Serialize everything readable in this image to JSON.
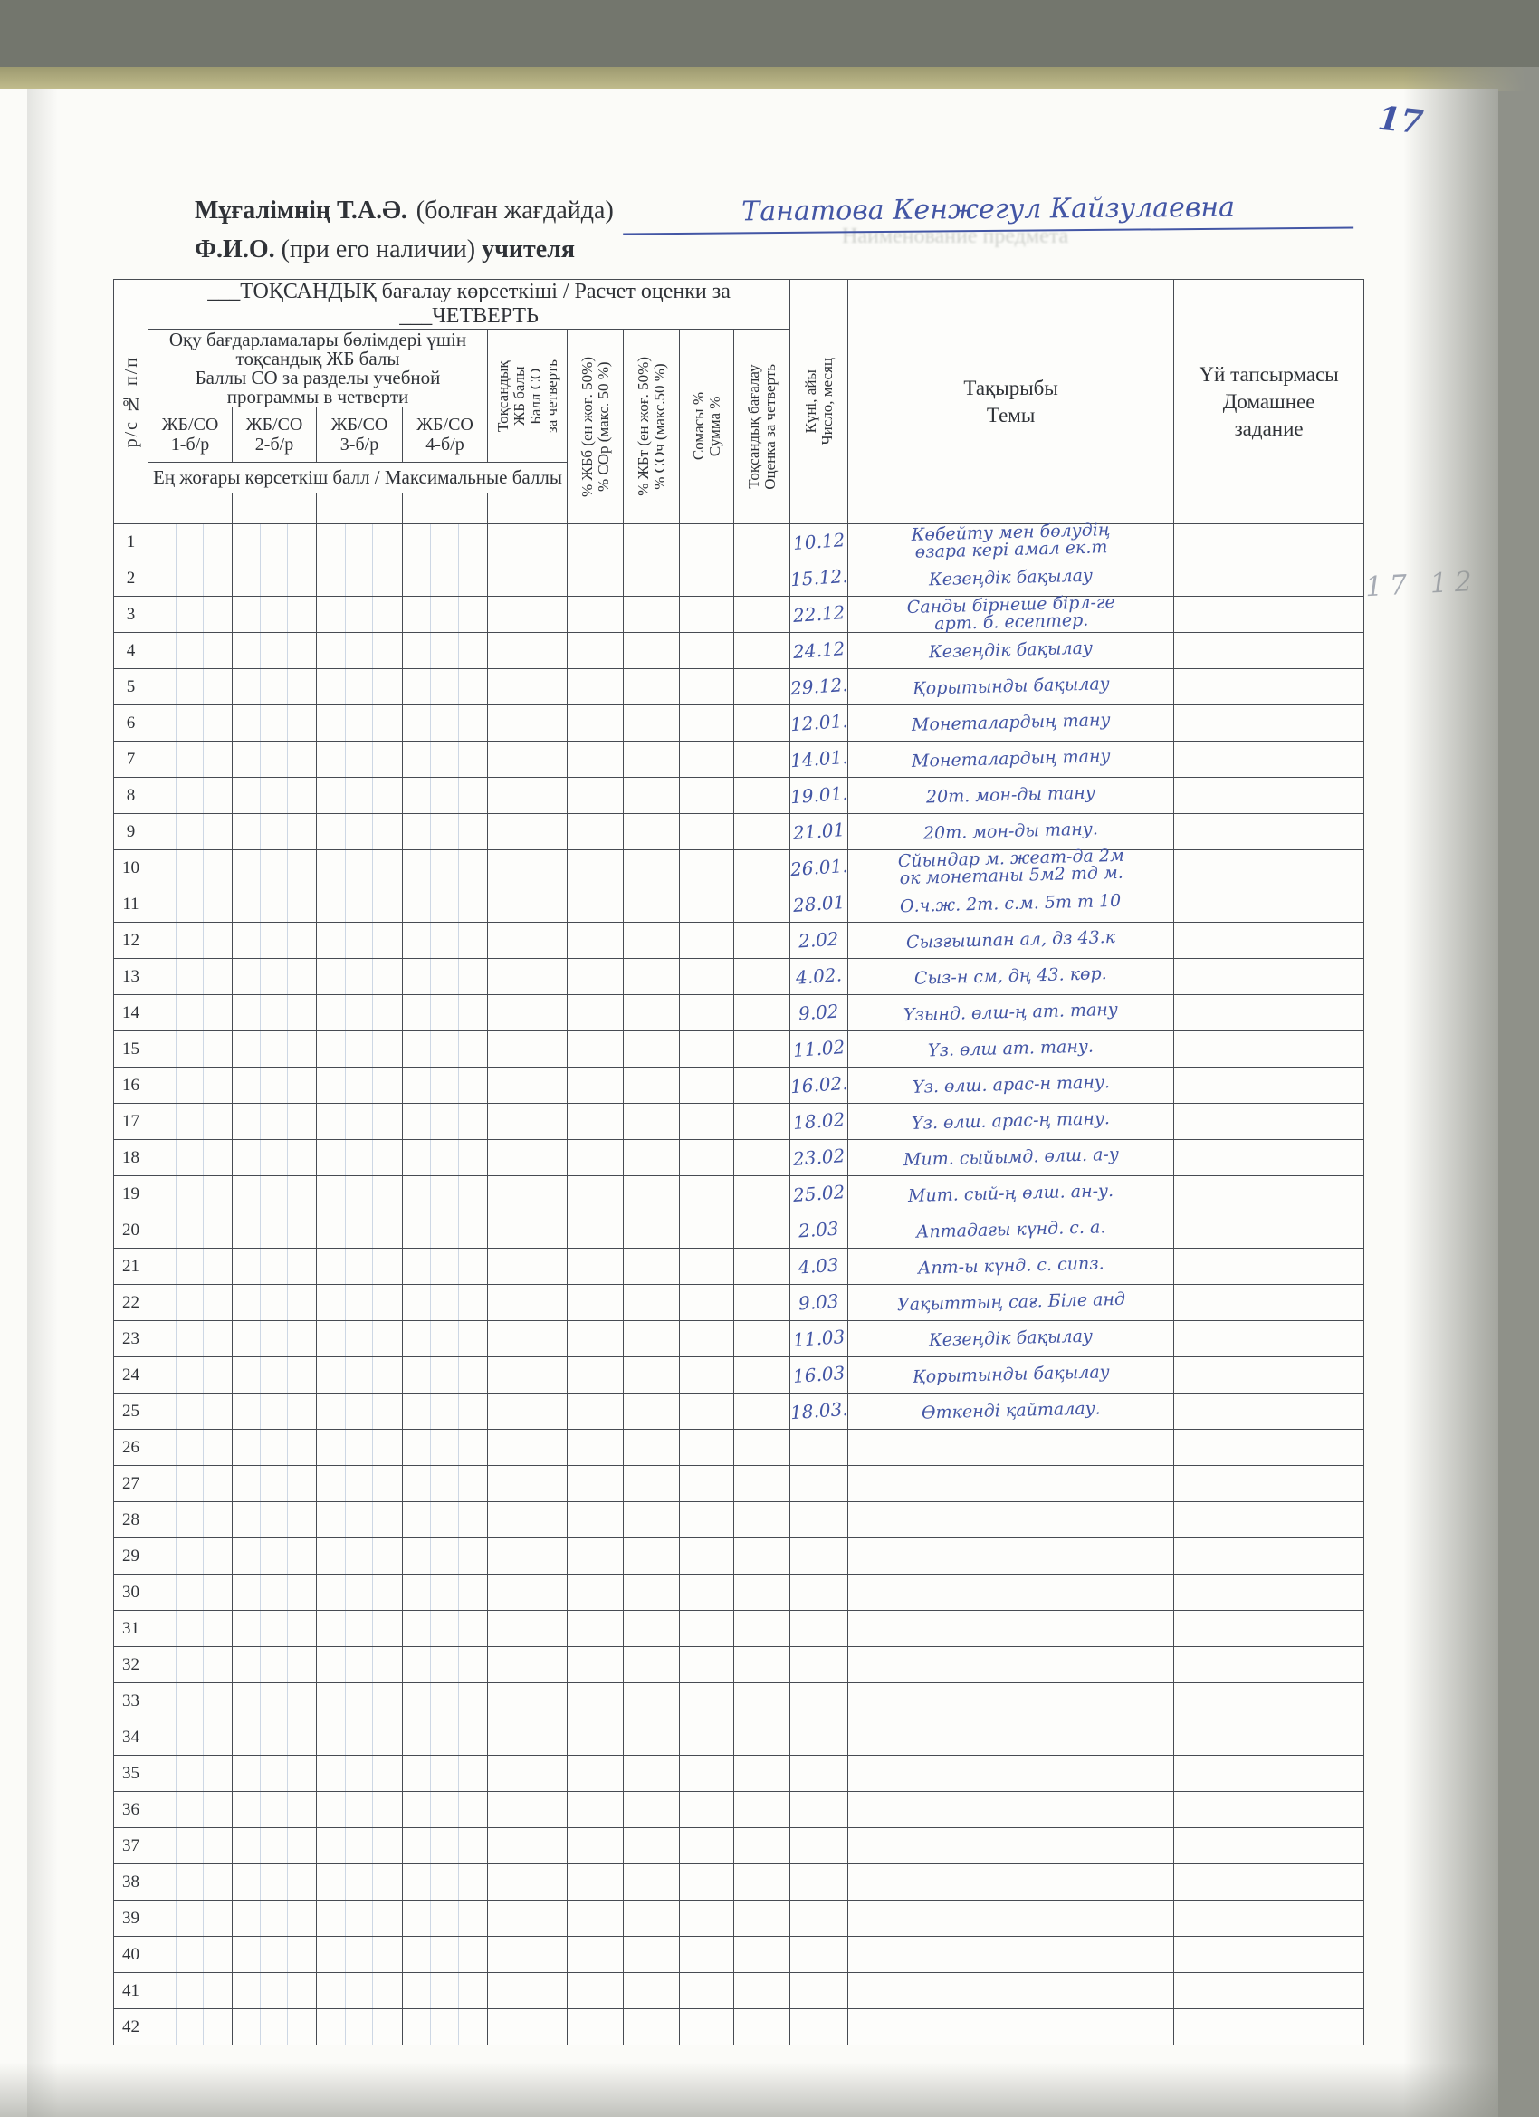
{
  "page": {
    "corner_page_number": "17",
    "margin_pencil_note": "17 12",
    "bleed_through_text": "Наименование предмета"
  },
  "teacher_line": {
    "label_bold_kk": "Мұғалімнің Т.А.Ә.",
    "label_paren_kk": "(болған жағдайда)",
    "handwritten_name": "Танатова Кенжегул Кайзулаевна",
    "label_bold_ru": "Ф.И.О.",
    "label_paren_ru": "(при его наличии)",
    "label_tail_ru": "учителя"
  },
  "table": {
    "title": "___ТОҚСАНДЫҚ бағалау көрсеткіші / Расчет оценки за ___ЧЕТВЕРТЬ",
    "col_num": "р/с  №  п/п",
    "group_header": "Оқу бағдарламалары бөлімдері үшін\nтоқсандық ЖБ балы\nБаллы СО за разделы учебной\nпрограммы в четверти",
    "sub_cols": [
      "ЖБ/СО\n1-б/р",
      "ЖБ/СО\n2-б/р",
      "ЖБ/СО\n3-б/р",
      "ЖБ/СО\n4-б/р"
    ],
    "col_tok_jb": "Тоқсандық\nЖБ балы\nБалл СО\nза четверть",
    "col_pct_jbb": "% ЖБб (ен жоғ. 50%)\n% СОр (макс. 50 %)",
    "col_pct_jbt": "% ЖБт (ен жоғ. 50%)\n% СОч (макс.50 %)",
    "col_somasy": "Сомасы %\nСумма %",
    "col_tok_bag": "Тоқсандық бағалау\nОценка за четверть",
    "col_kuni": "Күні, айы\nЧисло, месяц",
    "col_takyryby": "Тақырыбы\nТемы",
    "col_uy": "Үй тапсырмасы\nДомашнее\nзадание",
    "max_band": "Ең жоғары көрсеткіш балл / Максимальные баллы",
    "rows": [
      {
        "n": "1",
        "date": "10.12",
        "topic": "Көбейту мен бөлудің\nөзара кері амал ек.т"
      },
      {
        "n": "2",
        "date": "15.12.",
        "topic": "Кезеңдік бақылау"
      },
      {
        "n": "3",
        "date": "22.12",
        "topic": "Санды бірнеше бірл-ге\nарт. б. есептер."
      },
      {
        "n": "4",
        "date": "24.12",
        "topic": "Кезеңдік бақылау"
      },
      {
        "n": "5",
        "date": "29.12.",
        "topic": "Қорытынды бақылау"
      },
      {
        "n": "6",
        "date": "12.01.",
        "topic": "Монеталардың тану"
      },
      {
        "n": "7",
        "date": "14.01.",
        "topic": "Монеталардың тану"
      },
      {
        "n": "8",
        "date": "19.01.",
        "topic": "20т. мон-ды тану"
      },
      {
        "n": "9",
        "date": "21.01",
        "topic": "20т. мон-ды тану."
      },
      {
        "n": "10",
        "date": "26.01.",
        "topic": "Сйындар м. жеат-да 2м\nок монетаны 5м2 тд м."
      },
      {
        "n": "11",
        "date": "28.01",
        "topic": "О.ч.ж. 2т. с.м. 5т т 10"
      },
      {
        "n": "12",
        "date": "2.02",
        "topic": "Сызғышпан ал, дз 43.к"
      },
      {
        "n": "13",
        "date": "4.02.",
        "topic": "Сыз-н см, дң 43. көр."
      },
      {
        "n": "14",
        "date": "9.02",
        "topic": "Үзынд. өлш-ң ат. тану"
      },
      {
        "n": "15",
        "date": "11.02",
        "topic": "Үз. өлш ат. тану."
      },
      {
        "n": "16",
        "date": "16.02.",
        "topic": "Үз. өлш. арас-н тану."
      },
      {
        "n": "17",
        "date": "18.02",
        "topic": "Үз. өлш. арас-ң тану."
      },
      {
        "n": "18",
        "date": "23.02",
        "topic": "Мит. сыйымд. өлш. а-у"
      },
      {
        "n": "19",
        "date": "25.02",
        "topic": "Мит. сый-ң өлш. ан-у."
      },
      {
        "n": "20",
        "date": "2.03",
        "topic": "Аптадағы күнд. с. а."
      },
      {
        "n": "21",
        "date": "4.03",
        "topic": "Апт-ы күнд. с. сипз."
      },
      {
        "n": "22",
        "date": "9.03",
        "topic": "Уақыттың сағ. Біле анд"
      },
      {
        "n": "23",
        "date": "11.03",
        "topic": "Кезеңдік бақылау"
      },
      {
        "n": "24",
        "date": "16.03",
        "topic": "Қорытынды бақылау"
      },
      {
        "n": "25",
        "date": "18.03.",
        "topic": "Өткенді қайталау."
      },
      {
        "n": "26",
        "date": "",
        "topic": ""
      },
      {
        "n": "27",
        "date": "",
        "topic": ""
      },
      {
        "n": "28",
        "date": "",
        "topic": ""
      },
      {
        "n": "29",
        "date": "",
        "topic": ""
      },
      {
        "n": "30",
        "date": "",
        "topic": ""
      },
      {
        "n": "31",
        "date": "",
        "topic": ""
      },
      {
        "n": "32",
        "date": "",
        "topic": ""
      },
      {
        "n": "33",
        "date": "",
        "topic": ""
      },
      {
        "n": "34",
        "date": "",
        "topic": ""
      },
      {
        "n": "35",
        "date": "",
        "topic": ""
      },
      {
        "n": "36",
        "date": "",
        "topic": ""
      },
      {
        "n": "37",
        "date": "",
        "topic": ""
      },
      {
        "n": "38",
        "date": "",
        "topic": ""
      },
      {
        "n": "39",
        "date": "",
        "topic": ""
      },
      {
        "n": "40",
        "date": "",
        "topic": ""
      },
      {
        "n": "41",
        "date": "",
        "topic": ""
      },
      {
        "n": "42",
        "date": "",
        "topic": ""
      }
    ]
  },
  "colors": {
    "ink_blue": "#4356a5",
    "pencil_grey": "#a6abb4",
    "table_line": "#474b52",
    "scanner_grey": "#8f9189",
    "olive_band": "#c3be8e"
  }
}
